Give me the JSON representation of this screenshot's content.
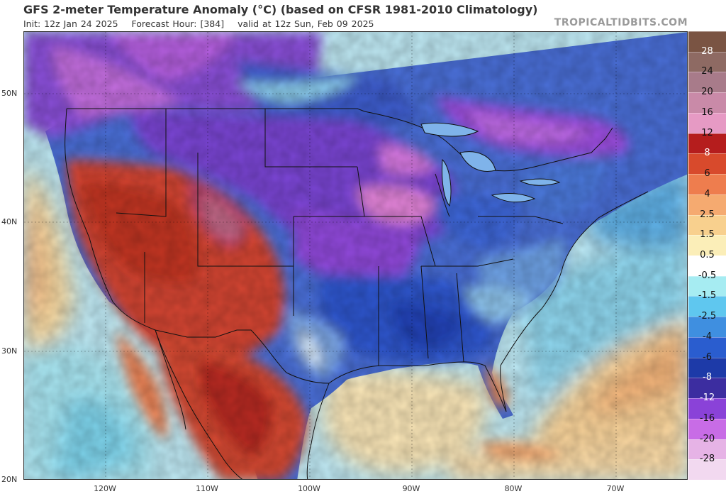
{
  "header": {
    "title": "GFS 2-meter Temperature Anomaly (°C) (based on CFSR 1981-2010 Climatology)",
    "init": "Init: 12z Jan 24 2025",
    "forecast_hour": "Forecast Hour: [384]",
    "valid": "valid at 12z Sun, Feb 09 2025",
    "watermark": "TROPICALTIDBITS.COM"
  },
  "map": {
    "lat_labels": [
      "50N",
      "40N",
      "30N",
      "20N"
    ],
    "lon_labels": [
      "120W",
      "110W",
      "100W",
      "90W",
      "80W",
      "70W"
    ]
  },
  "colorbar": {
    "labels": [
      "28",
      "24",
      "20",
      "16",
      "12",
      "8",
      "6",
      "4",
      "2.5",
      "1.5",
      "0.5",
      "-0.5",
      "-1.5",
      "-2.5",
      "-4",
      "-6",
      "-8",
      "-12",
      "-16",
      "-20",
      "-28"
    ],
    "colors": [
      "#7a5443",
      "#8e6a63",
      "#a87b8a",
      "#c98aa8",
      "#e69ac4",
      "#b51d1d",
      "#d84a2c",
      "#ee7d4e",
      "#f5aa70",
      "#f8d08e",
      "#fbeeb8",
      "#ffffff",
      "#a6ecf2",
      "#5fc7ef",
      "#3f8fe0",
      "#2a5dcf",
      "#1d3aa8",
      "#3c2da0",
      "#8a42d8",
      "#c86ce6",
      "#e6b3e6",
      "#f2d9f0"
    ]
  },
  "colors": {
    "warm_land": "#d5402e",
    "cold_land": "#4b73d8",
    "deep_cold": "#9a48e0",
    "ocean_cool": "#b3e8f5",
    "ocean_warm": "#fbe3b1"
  }
}
